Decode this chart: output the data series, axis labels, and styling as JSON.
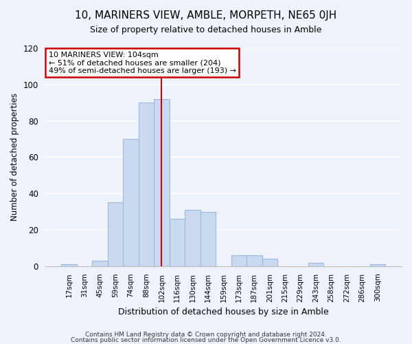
{
  "title": "10, MARINERS VIEW, AMBLE, MORPETH, NE65 0JH",
  "subtitle": "Size of property relative to detached houses in Amble",
  "xlabel": "Distribution of detached houses by size in Amble",
  "ylabel": "Number of detached properties",
  "bar_labels": [
    "17sqm",
    "31sqm",
    "45sqm",
    "59sqm",
    "74sqm",
    "88sqm",
    "102sqm",
    "116sqm",
    "130sqm",
    "144sqm",
    "159sqm",
    "173sqm",
    "187sqm",
    "201sqm",
    "215sqm",
    "229sqm",
    "243sqm",
    "258sqm",
    "272sqm",
    "286sqm",
    "300sqm"
  ],
  "bar_heights": [
    1,
    0,
    3,
    35,
    70,
    90,
    92,
    26,
    31,
    30,
    0,
    6,
    6,
    4,
    0,
    0,
    2,
    0,
    0,
    0,
    1
  ],
  "bar_color": "#c9d9f0",
  "bar_edge_color": "#a0b8d8",
  "vline_x": 6,
  "vline_color": "#cc0000",
  "annotation_title": "10 MARINERS VIEW: 104sqm",
  "annotation_line1": "← 51% of detached houses are smaller (204)",
  "annotation_line2": "49% of semi-detached houses are larger (193) →",
  "annotation_box_color": "#ffffff",
  "annotation_box_edge": "#cc0000",
  "ylim": [
    0,
    120
  ],
  "yticks": [
    0,
    20,
    40,
    60,
    80,
    100,
    120
  ],
  "footer1": "Contains HM Land Registry data © Crown copyright and database right 2024.",
  "footer2": "Contains public sector information licensed under the Open Government Licence v3.0.",
  "background_color": "#eef2fb"
}
